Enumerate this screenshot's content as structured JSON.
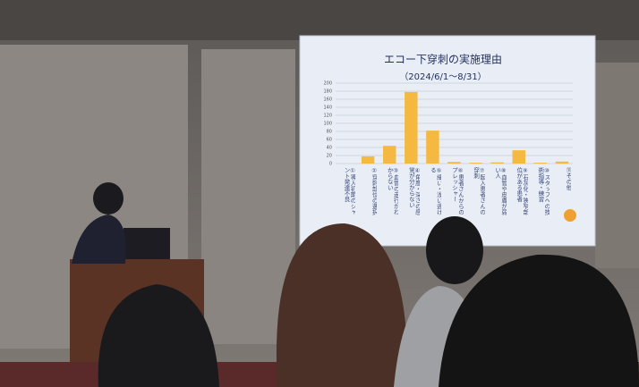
{
  "chart_data": {
    "type": "bar",
    "title": "エコー下穿刺の実施理由",
    "subtitle": "（2024/6/1～8/31）",
    "categories": [
      "①導入初期のシャント発達不良",
      "②穿刺部位の選択",
      "③血管の走行がわからない",
      "④角度・深さの感覚が分からない",
      "⑤細い・浅い逃げる",
      "⑥患者さんからのプレッシャー",
      "⑦転入患者さんの穿刺",
      "⑧血管や皮膚が弱い人",
      "⑨石灰化・狭窄部位がある患者",
      "⑩スタッフへの技術指導・練習",
      "⑪その他"
    ],
    "values": [
      0,
      18,
      44,
      178,
      82,
      4,
      2,
      3,
      33,
      2,
      5
    ],
    "color": "#f5b942",
    "ylim": [
      0,
      200
    ],
    "yticks": [
      0,
      20,
      40,
      60,
      80,
      100,
      120,
      140,
      160,
      180,
      200
    ],
    "grid": true
  }
}
